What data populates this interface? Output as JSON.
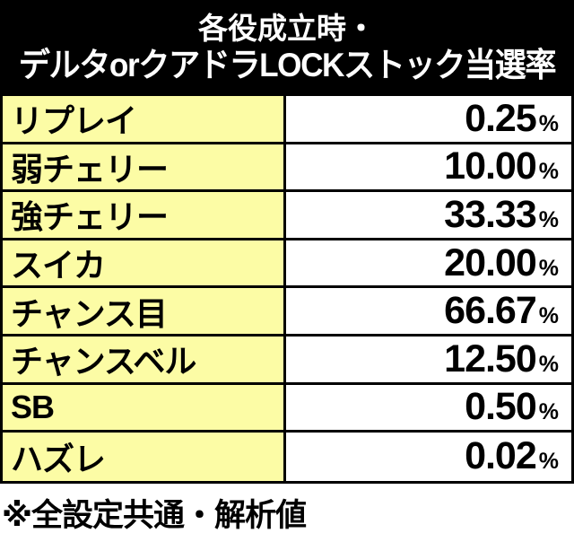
{
  "title": {
    "line1": "各役成立時・",
    "line2": "デルタorクアドラLOCKストック当選率"
  },
  "table": {
    "rows": [
      {
        "label": "リプレイ",
        "value": "0.25",
        "unit": "%"
      },
      {
        "label": "弱チェリー",
        "value": "10.00",
        "unit": "%"
      },
      {
        "label": "強チェリー",
        "value": "33.33",
        "unit": "%"
      },
      {
        "label": "スイカ",
        "value": "20.00",
        "unit": "%"
      },
      {
        "label": "チャンス目",
        "value": "66.67",
        "unit": "%"
      },
      {
        "label": "チャンスベル",
        "value": "12.50",
        "unit": "%"
      },
      {
        "label": "SB",
        "value": "0.50",
        "unit": "%"
      },
      {
        "label": "ハズレ",
        "value": "0.02",
        "unit": "%"
      }
    ]
  },
  "footnote": "※全設定共通・解析値",
  "colors": {
    "header_bg": "#000000",
    "header_text": "#ffffff",
    "label_bg": "#fcfca5",
    "value_bg": "#ffffff",
    "border": "#000000",
    "text": "#000000"
  }
}
